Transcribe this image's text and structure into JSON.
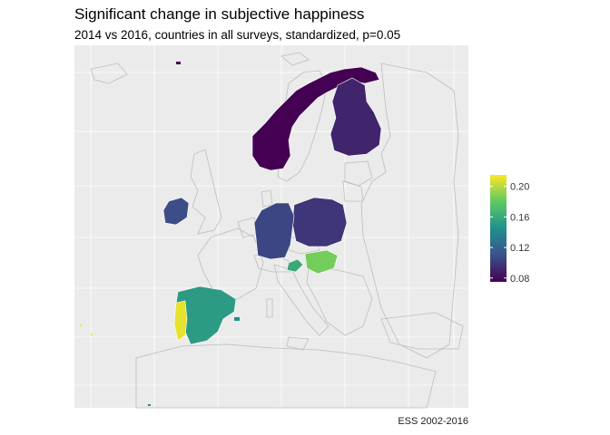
{
  "title": "Significant change in subjective happiness",
  "subtitle": "2014 vs 2016, countries in all surveys, standardized, p=0.05",
  "caption": "ESS 2002-2016",
  "colors": {
    "panel": "#ebebeb",
    "grid": "#ffffff",
    "border": "#bdbdbd",
    "land": "#ebebeb",
    "scale": [
      "#440154",
      "#3b528b",
      "#21908c",
      "#5dc963",
      "#fde725"
    ]
  },
  "legend": {
    "ticks": [
      "0.20",
      "0.16",
      "0.12",
      "0.08"
    ],
    "tick_values": [
      0.2,
      0.16,
      0.12,
      0.08
    ],
    "range": [
      0.075,
      0.215
    ]
  },
  "regions": [
    {
      "name": "Norway",
      "value": 0.075
    },
    {
      "name": "Finland",
      "value": 0.09
    },
    {
      "name": "Poland",
      "value": 0.098
    },
    {
      "name": "Germany",
      "value": 0.105
    },
    {
      "name": "Ireland",
      "value": 0.108
    },
    {
      "name": "Spain",
      "value": 0.152
    },
    {
      "name": "Slovenia",
      "value": 0.16
    },
    {
      "name": "Hungary",
      "value": 0.185
    },
    {
      "name": "Portugal",
      "value": 0.21
    }
  ]
}
